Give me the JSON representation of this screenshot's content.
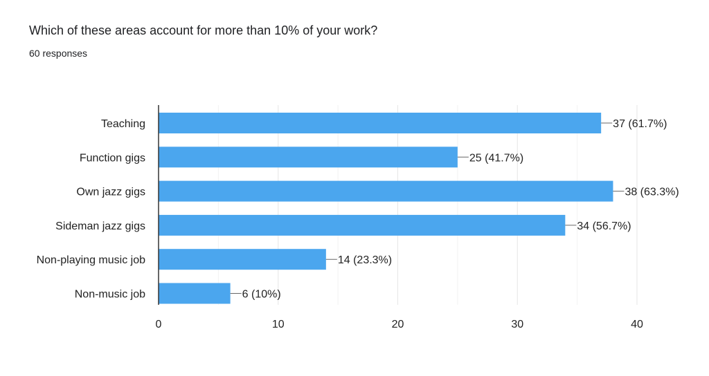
{
  "chart_data": {
    "type": "bar",
    "orientation": "horizontal",
    "title": "Which of these areas account for more than 10% of your work?",
    "subtitle": "60 responses",
    "categories": [
      "Teaching",
      "Function gigs",
      "Own jazz gigs",
      "Sideman jazz gigs",
      "Non-playing music job",
      "Non-music job"
    ],
    "values": [
      37,
      25,
      38,
      34,
      14,
      6
    ],
    "data_labels": [
      "37 (61.7%)",
      "25 (41.7%)",
      "38 (63.3%)",
      "34 (56.7%)",
      "14 (23.3%)",
      "6 (10%)"
    ],
    "xlim": [
      0,
      40
    ],
    "xticks": [
      0,
      10,
      20,
      30,
      40
    ],
    "xlabel": "",
    "ylabel": "",
    "grid": true,
    "bar_color": "#4ba6ee"
  }
}
